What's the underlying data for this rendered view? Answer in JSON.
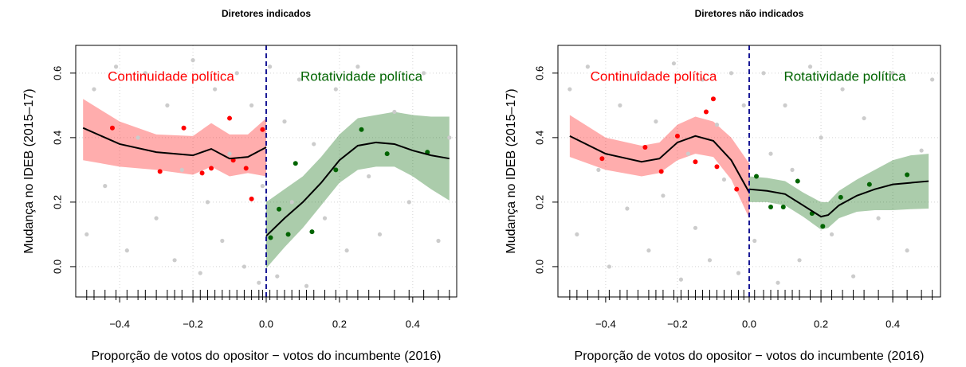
{
  "chart_data": [
    {
      "type": "rdd",
      "title": "Diretores indicados",
      "xlabel": "Proporção de votos do opositor − votos do incumbente (2016)",
      "ylabel": "Mudança no IDEB (2015–17)",
      "xlim": [
        -0.52,
        0.52
      ],
      "ylim": [
        -0.094,
        0.686
      ],
      "xticks": [
        {
          "value": -0.4,
          "label": "−0.4"
        },
        {
          "value": -0.2,
          "label": "−0.2"
        },
        {
          "value": 0,
          "label": "0.0"
        },
        0.2,
        0.4
      ],
      "yticks": [
        {
          "value": 0,
          "label": "0.0"
        },
        0.2,
        0.4,
        0.6
      ],
      "grid": true,
      "cutoff": 0,
      "cutoff_color": "#00008b",
      "rug": true,
      "annotations": [
        {
          "text": "Continuidade política",
          "color": "#ff0000"
        },
        {
          "text": "Rotatividade política",
          "color": "#006400"
        }
      ],
      "series": [
        {
          "kind": "scatter",
          "color": "#cccccc",
          "x": [
            -0.49,
            -0.47,
            -0.44,
            -0.41,
            -0.38,
            -0.35,
            -0.33,
            -0.3,
            -0.27,
            -0.25,
            -0.23,
            -0.2,
            -0.18,
            -0.16,
            -0.14,
            -0.12,
            -0.1,
            -0.08,
            -0.06,
            -0.04,
            -0.02,
            -0.01,
            0.01,
            0.03,
            0.05,
            0.07,
            0.09,
            0.11,
            0.13,
            0.16,
            0.19,
            0.22,
            0.25,
            0.28,
            0.31,
            0.35,
            0.39,
            0.43,
            0.47,
            0.5
          ],
          "values": [
            0.1,
            0.55,
            0.25,
            0.62,
            0.05,
            0.4,
            0.6,
            0.15,
            0.5,
            0.02,
            0.3,
            0.64,
            -0.02,
            0.2,
            0.55,
            0.08,
            0.35,
            0.6,
            0.0,
            0.5,
            -0.05,
            0.25,
            0.62,
            -0.03,
            0.45,
            0.2,
            0.58,
            -0.06,
            0.38,
            0.15,
            0.55,
            0.05,
            0.62,
            0.28,
            0.1,
            0.48,
            0.2,
            0.6,
            0.08,
            0.4
          ]
        },
        {
          "kind": "scatter",
          "color": "#ff0000",
          "x": [
            -0.42,
            -0.29,
            -0.225,
            -0.175,
            -0.15,
            -0.1,
            -0.09,
            -0.055,
            -0.04,
            -0.01
          ],
          "values": [
            0.43,
            0.295,
            0.43,
            0.29,
            0.305,
            0.46,
            0.33,
            0.305,
            0.21,
            0.425
          ]
        },
        {
          "kind": "scatter",
          "color": "#006400",
          "x": [
            0.012,
            0.035,
            0.06,
            0.08,
            0.125,
            0.19,
            0.26,
            0.33,
            0.44
          ],
          "values": [
            0.09,
            0.178,
            0.1,
            0.32,
            0.108,
            0.3,
            0.425,
            0.35,
            0.355
          ]
        },
        {
          "kind": "fit",
          "color": "#000000",
          "band_color": "rgba(255,0,0,0.32)",
          "x": [
            -0.5,
            -0.4,
            -0.3,
            -0.2,
            -0.15,
            -0.1,
            -0.05,
            0
          ],
          "values": [
            0.43,
            0.38,
            0.355,
            0.345,
            0.365,
            0.335,
            0.34,
            0.37
          ],
          "lower": [
            0.33,
            0.31,
            0.3,
            0.285,
            0.31,
            0.28,
            0.29,
            0.28
          ],
          "upper": [
            0.52,
            0.45,
            0.41,
            0.405,
            0.445,
            0.41,
            0.41,
            0.46
          ]
        },
        {
          "kind": "fit",
          "color": "#000000",
          "band_color": "rgba(0,100,0,0.33)",
          "x": [
            0,
            0.05,
            0.1,
            0.15,
            0.2,
            0.25,
            0.3,
            0.35,
            0.4,
            0.45,
            0.5
          ],
          "values": [
            0.095,
            0.15,
            0.2,
            0.26,
            0.33,
            0.375,
            0.385,
            0.38,
            0.36,
            0.345,
            0.335
          ],
          "lower": [
            -0.005,
            0.06,
            0.12,
            0.19,
            0.26,
            0.3,
            0.31,
            0.31,
            0.28,
            0.24,
            0.205
          ],
          "upper": [
            0.2,
            0.24,
            0.28,
            0.34,
            0.41,
            0.46,
            0.47,
            0.48,
            0.47,
            0.465,
            0.465
          ]
        }
      ]
    },
    {
      "type": "rdd",
      "title": "Diretores não indicados",
      "xlabel": "Proporção de votos do opositor − votos do incumbente (2016)",
      "ylabel": "Mudança no IDEB (2015–17)",
      "xlim": [
        -0.533,
        0.533
      ],
      "ylim": [
        -0.094,
        0.686
      ],
      "xticks": [
        {
          "value": -0.4,
          "label": "−0.4"
        },
        {
          "value": -0.2,
          "label": "−0.2"
        },
        {
          "value": 0,
          "label": "0.0"
        },
        0.2,
        0.4
      ],
      "yticks": [
        {
          "value": 0,
          "label": "0.0"
        },
        0.2,
        0.4,
        0.6
      ],
      "grid": true,
      "cutoff": 0,
      "cutoff_color": "#00008b",
      "rug": true,
      "annotations": [
        {
          "text": "Continuidade política",
          "color": "#ff0000"
        },
        {
          "text": "Rotatividade política",
          "color": "#006400"
        }
      ],
      "series": [
        {
          "kind": "scatter",
          "color": "#cccccc",
          "x": [
            -0.5,
            -0.48,
            -0.45,
            -0.42,
            -0.39,
            -0.36,
            -0.34,
            -0.31,
            -0.28,
            -0.26,
            -0.24,
            -0.21,
            -0.19,
            -0.17,
            -0.15,
            -0.13,
            -0.11,
            -0.09,
            -0.07,
            -0.05,
            -0.03,
            -0.015,
            0.015,
            0.04,
            0.06,
            0.08,
            0.1,
            0.12,
            0.14,
            0.17,
            0.2,
            0.23,
            0.26,
            0.29,
            0.32,
            0.36,
            0.4,
            0.44,
            0.48,
            0.51
          ],
          "values": [
            0.55,
            0.1,
            0.62,
            0.3,
            0.0,
            0.5,
            0.18,
            0.6,
            0.05,
            0.45,
            0.22,
            0.63,
            -0.04,
            0.35,
            0.12,
            0.58,
            0.02,
            0.44,
            0.27,
            0.6,
            -0.02,
            0.5,
            0.08,
            0.6,
            0.35,
            -0.05,
            0.5,
            0.3,
            0.02,
            0.62,
            0.4,
            0.1,
            0.55,
            -0.03,
            0.46,
            0.15,
            0.6,
            0.05,
            0.36,
            0.58
          ]
        },
        {
          "kind": "scatter",
          "color": "#ff0000",
          "x": [
            -0.41,
            -0.29,
            -0.245,
            -0.2,
            -0.15,
            -0.12,
            -0.1,
            -0.09,
            -0.035
          ],
          "values": [
            0.335,
            0.37,
            0.295,
            0.405,
            0.325,
            0.48,
            0.52,
            0.31,
            0.24
          ]
        },
        {
          "kind": "scatter",
          "color": "#006400",
          "x": [
            0.02,
            0.06,
            0.095,
            0.135,
            0.175,
            0.205,
            0.255,
            0.335,
            0.44
          ],
          "values": [
            0.28,
            0.185,
            0.185,
            0.265,
            0.165,
            0.125,
            0.215,
            0.255,
            0.285
          ]
        },
        {
          "kind": "fit",
          "color": "#000000",
          "band_color": "rgba(255,0,0,0.32)",
          "x": [
            -0.5,
            -0.4,
            -0.3,
            -0.25,
            -0.2,
            -0.15,
            -0.1,
            -0.05,
            0
          ],
          "values": [
            0.405,
            0.35,
            0.325,
            0.335,
            0.385,
            0.405,
            0.39,
            0.33,
            0.23
          ],
          "lower": [
            0.34,
            0.3,
            0.28,
            0.29,
            0.33,
            0.35,
            0.34,
            0.27,
            0.15
          ],
          "upper": [
            0.47,
            0.4,
            0.375,
            0.385,
            0.44,
            0.465,
            0.45,
            0.4,
            0.32
          ]
        },
        {
          "kind": "fit",
          "color": "#000000",
          "band_color": "rgba(0,100,0,0.33)",
          "x": [
            0,
            0.05,
            0.1,
            0.15,
            0.2,
            0.22,
            0.25,
            0.3,
            0.35,
            0.4,
            0.45,
            0.5
          ],
          "values": [
            0.24,
            0.235,
            0.225,
            0.19,
            0.155,
            0.16,
            0.19,
            0.22,
            0.24,
            0.255,
            0.26,
            0.265
          ],
          "lower": [
            0.2,
            0.2,
            0.19,
            0.155,
            0.115,
            0.12,
            0.15,
            0.17,
            0.175,
            0.175,
            0.178,
            0.18
          ],
          "upper": [
            0.28,
            0.275,
            0.265,
            0.23,
            0.2,
            0.2,
            0.235,
            0.27,
            0.3,
            0.33,
            0.345,
            0.35
          ]
        }
      ]
    }
  ]
}
